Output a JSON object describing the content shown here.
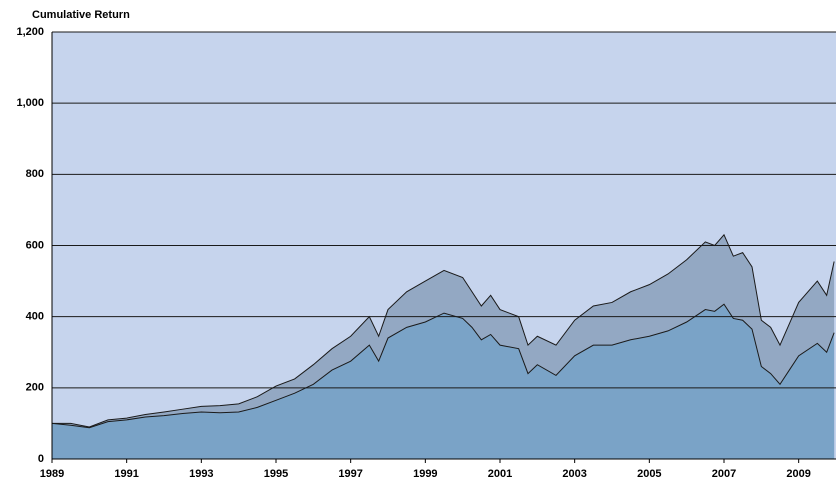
{
  "chart_data": {
    "type": "area",
    "title": "Cumulative Return",
    "x": [
      1989,
      1989.5,
      1990,
      1990.5,
      1991,
      1991.5,
      1992,
      1992.5,
      1993,
      1993.5,
      1994,
      1994.5,
      1995,
      1995.5,
      1996,
      1996.5,
      1997,
      1997.5,
      1997.75,
      1998,
      1998.5,
      1999,
      1999.5,
      2000,
      2000.25,
      2000.5,
      2000.75,
      2001,
      2001.5,
      2001.75,
      2002,
      2002.5,
      2003,
      2003.5,
      2004,
      2004.5,
      2005,
      2005.5,
      2006,
      2006.5,
      2006.75,
      2007,
      2007.25,
      2007.5,
      2007.75,
      2008,
      2008.25,
      2008.5,
      2008.75,
      2009,
      2009.5,
      2009.75,
      2009.95
    ],
    "series": [
      {
        "color": "#93a8c3",
        "values": [
          100,
          100,
          90,
          110,
          115,
          125,
          132,
          140,
          148,
          150,
          155,
          175,
          205,
          225,
          265,
          310,
          345,
          400,
          345,
          420,
          470,
          500,
          530,
          510,
          470,
          430,
          460,
          420,
          400,
          320,
          345,
          320,
          390,
          430,
          440,
          470,
          490,
          520,
          560,
          610,
          600,
          630,
          570,
          580,
          540,
          390,
          370,
          320,
          380,
          440,
          500,
          460,
          555
        ]
      },
      {
        "color": "#7aa3c7",
        "values": [
          100,
          95,
          88,
          105,
          110,
          118,
          122,
          128,
          132,
          130,
          132,
          145,
          165,
          185,
          210,
          250,
          275,
          320,
          275,
          340,
          370,
          385,
          410,
          395,
          370,
          335,
          350,
          320,
          310,
          240,
          265,
          235,
          290,
          320,
          320,
          335,
          345,
          360,
          385,
          420,
          415,
          435,
          395,
          390,
          365,
          260,
          240,
          210,
          250,
          290,
          325,
          300,
          355
        ]
      }
    ],
    "xlim": [
      1989,
      2010
    ],
    "xticks": [
      1989,
      1991,
      1993,
      1995,
      1997,
      1999,
      2001,
      2003,
      2005,
      2007,
      2009
    ],
    "ylim": [
      0,
      1200
    ],
    "yticks": [
      0,
      200,
      400,
      600,
      800,
      {
        "value": 1000,
        "label": "1,000"
      },
      {
        "value": 1200,
        "label": "1,200"
      }
    ],
    "grid": true,
    "background": "#c6d4ed"
  }
}
